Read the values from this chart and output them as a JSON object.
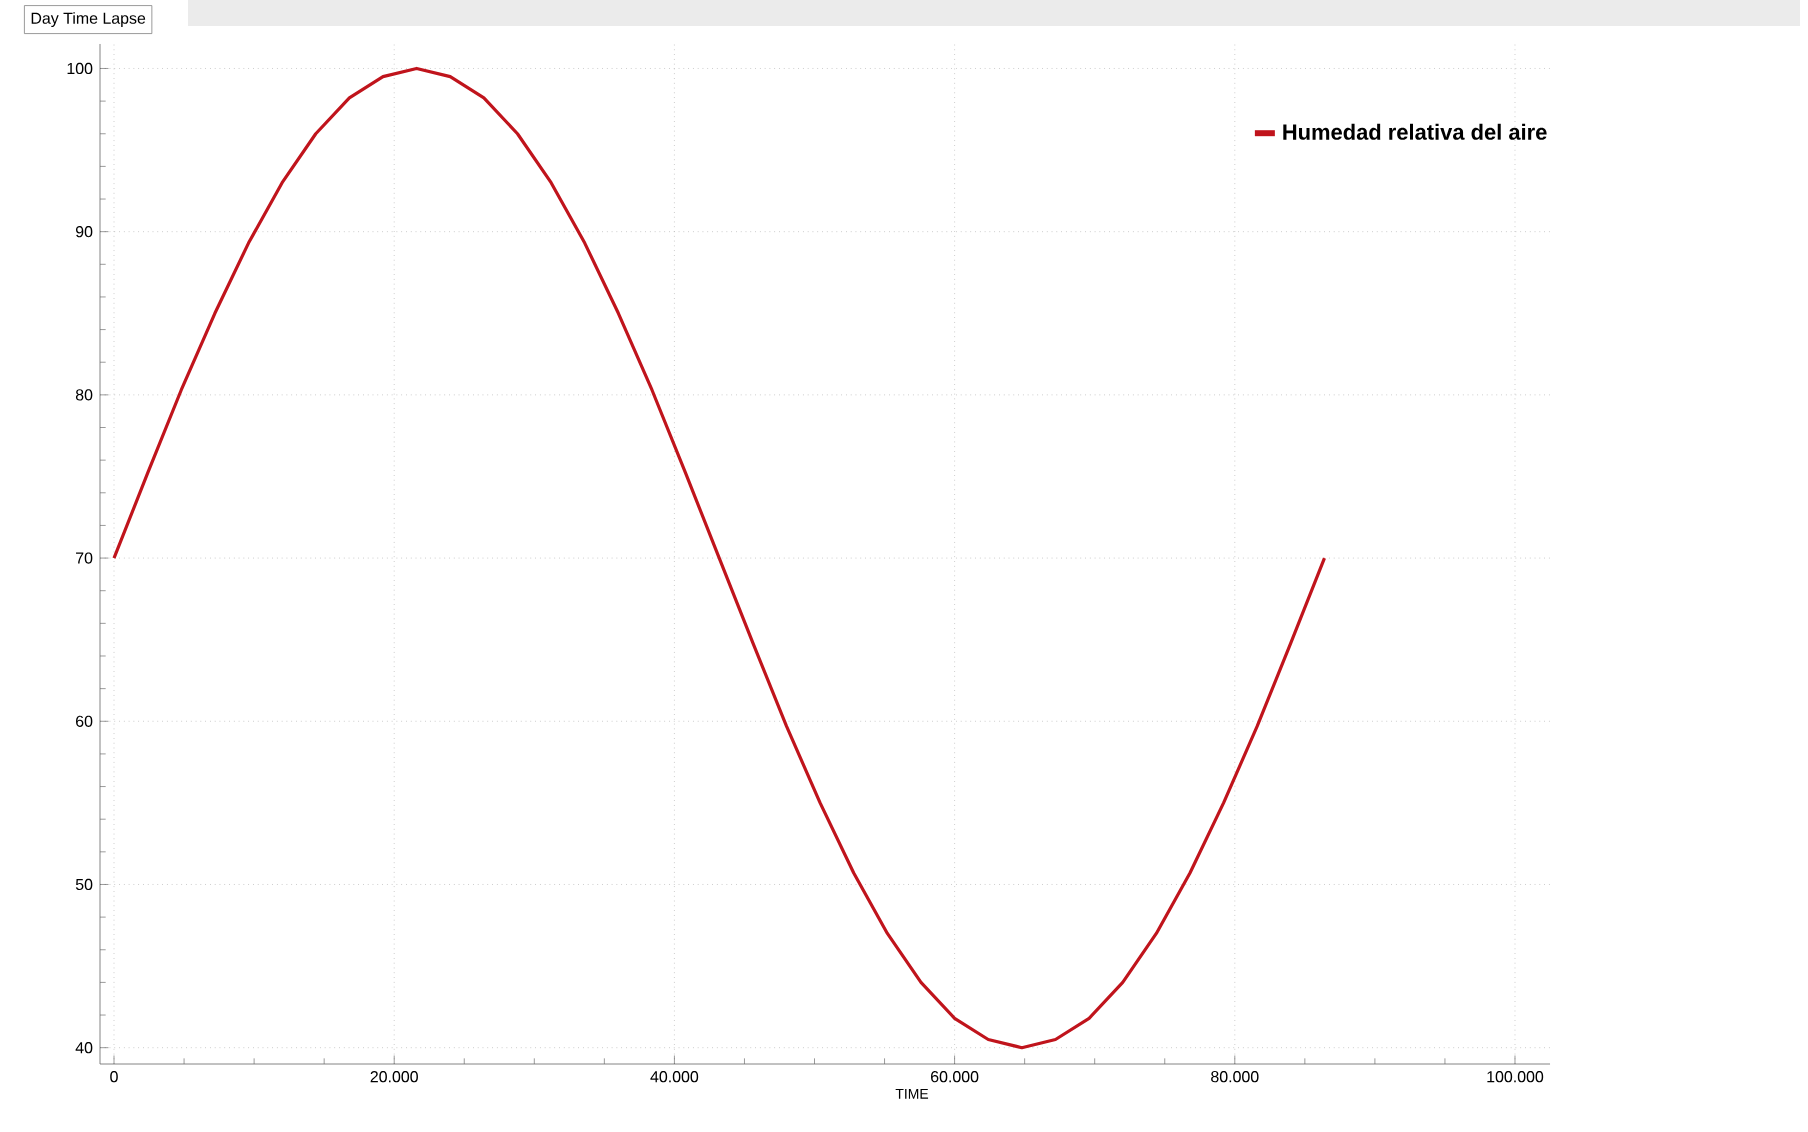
{
  "chart_data": {
    "type": "line",
    "title": "Day Time Lapse",
    "xlabel": "TIME",
    "x": [
      0,
      2400,
      4800,
      7200,
      9600,
      12000,
      14400,
      16800,
      19200,
      21600,
      24000,
      26400,
      28800,
      31200,
      33600,
      36000,
      38400,
      40800,
      43200,
      45600,
      48000,
      50400,
      52800,
      55200,
      57600,
      60000,
      62400,
      64800,
      67200,
      69600,
      72000,
      74400,
      76800,
      79200,
      81600,
      84000,
      86400
    ],
    "series": [
      {
        "name": "Humedad relativa del aire",
        "color": "#c0141c",
        "values": [
          70,
          75.2,
          80.3,
          85,
          89.3,
          93,
          96,
          98.2,
          99.5,
          100,
          99.5,
          98.2,
          96,
          93,
          89.3,
          85,
          80.3,
          75.2,
          70,
          64.8,
          59.7,
          55,
          50.7,
          47,
          44,
          41.8,
          40.5,
          40,
          40.5,
          41.8,
          44,
          47,
          50.7,
          55,
          59.7,
          64.8,
          70
        ]
      }
    ],
    "xlim": [
      -1000,
      102500
    ],
    "ylim": [
      39,
      101.5
    ],
    "xticks": [
      0,
      {
        "value": 20000,
        "label": "20.000"
      },
      {
        "value": 40000,
        "label": "40.000"
      },
      {
        "value": 60000,
        "label": "60.000"
      },
      {
        "value": 80000,
        "label": "80.000"
      },
      {
        "value": 100000,
        "label": "100.000"
      }
    ],
    "yticks": [
      40,
      50,
      60,
      70,
      80,
      90,
      100
    ],
    "grid": true,
    "legend": "top right",
    "marker": "none",
    "line_style": "solid"
  }
}
